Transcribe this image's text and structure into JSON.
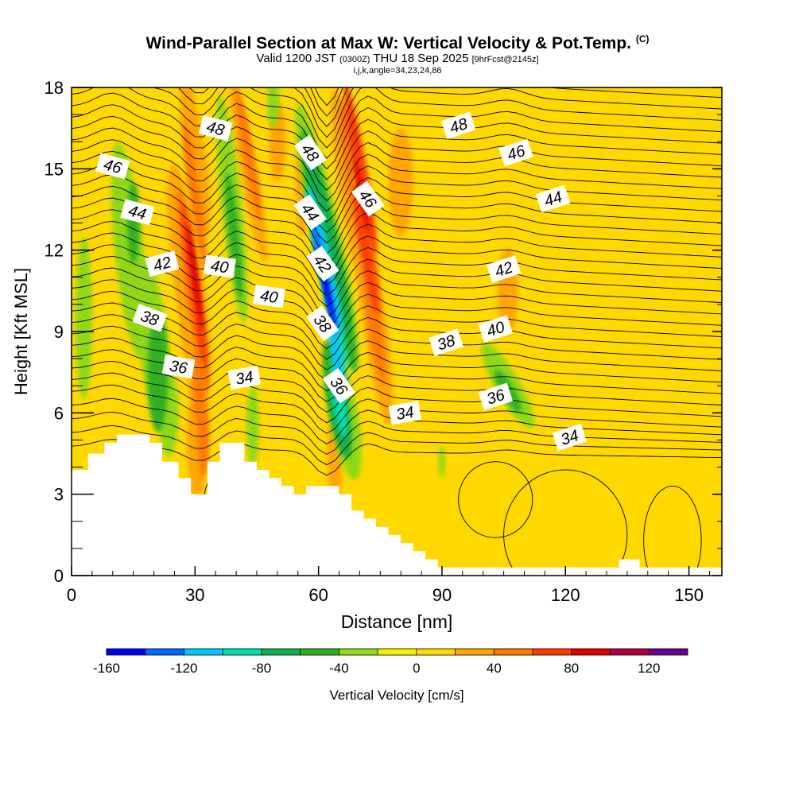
{
  "title": {
    "main": "Wind-Parallel Section at Max W: Vertical Velocity & Pot.Temp.",
    "copyright": "(C)",
    "valid_prefix": "Valid 1200 JST",
    "valid_utc": "(0300Z)",
    "valid_date": "THU 18 Sep 2025",
    "forecast_tag": "[9hrFcst@2145z]",
    "params": "i,j,k,angle=34,23,24,86"
  },
  "chart_data": {
    "type": "contour",
    "title": "Wind-Parallel Section at Max W: Vertical Velocity & Pot.Temp.",
    "xlabel": "Distance [nm]",
    "ylabel": "Height [Kft MSL]",
    "xlim": [
      0,
      158
    ],
    "ylim": [
      0,
      18
    ],
    "x_ticks": [
      0,
      30,
      60,
      90,
      120,
      150
    ],
    "y_ticks": [
      0,
      3,
      6,
      9,
      12,
      15,
      18
    ],
    "colorbar": {
      "label": "Vertical Velocity [cm/s]",
      "ticks": [
        -160,
        -120,
        -80,
        -40,
        0,
        40,
        80,
        120
      ],
      "levels": [
        -160,
        -140,
        -120,
        -100,
        -80,
        -60,
        -40,
        -20,
        0,
        20,
        40,
        60,
        80,
        100,
        120,
        140
      ],
      "colors": [
        "#0000ee",
        "#0066ff",
        "#00c8ff",
        "#00e0b0",
        "#10b050",
        "#30b020",
        "#90d818",
        "#f2f200",
        "#ffd800",
        "#ffa600",
        "#ff7a00",
        "#ff3c00",
        "#e00000",
        "#b00040",
        "#6a0090"
      ]
    },
    "velocity_field": [
      {
        "x": 12,
        "y": 11,
        "w": -25
      },
      {
        "x": 20,
        "y": 6,
        "w": -40
      },
      {
        "x": 24,
        "y": 8,
        "w": -50
      },
      {
        "x": 30,
        "y": 11,
        "w": 65
      },
      {
        "x": 27,
        "y": 13,
        "w": 45
      },
      {
        "x": 38,
        "y": 12,
        "w": -45
      },
      {
        "x": 43,
        "y": 17,
        "w": 40
      },
      {
        "x": 50,
        "y": 15,
        "w": 30
      },
      {
        "x": 61,
        "y": 10,
        "w": -140
      },
      {
        "x": 64,
        "y": 6,
        "w": -100
      },
      {
        "x": 70,
        "y": 12,
        "w": 70
      },
      {
        "x": 78,
        "y": 7,
        "w": 30
      },
      {
        "x": 105,
        "y": 7,
        "w": -30
      },
      {
        "x": 85,
        "y": 3,
        "w": -25
      },
      {
        "x": 108,
        "y": 12,
        "w": 20
      },
      {
        "x": 150,
        "y": 4,
        "w": 20
      }
    ],
    "theta_contours": {
      "interval_k": 1,
      "labels": [
        {
          "value": "48",
          "x": 35,
          "y": 16.5
        },
        {
          "value": "48",
          "x": 58,
          "y": 15.6
        },
        {
          "value": "48",
          "x": 94,
          "y": 16.6
        },
        {
          "value": "46",
          "x": 10,
          "y": 15.1
        },
        {
          "value": "46",
          "x": 72,
          "y": 13.9
        },
        {
          "value": "46",
          "x": 108,
          "y": 15.6
        },
        {
          "value": "44",
          "x": 16,
          "y": 13.4
        },
        {
          "value": "44",
          "x": 58,
          "y": 13.4
        },
        {
          "value": "44",
          "x": 117,
          "y": 13.9
        },
        {
          "value": "42",
          "x": 22,
          "y": 11.5
        },
        {
          "value": "42",
          "x": 61,
          "y": 11.5
        },
        {
          "value": "42",
          "x": 105,
          "y": 11.3
        },
        {
          "value": "40",
          "x": 36,
          "y": 11.4
        },
        {
          "value": "40",
          "x": 48,
          "y": 10.3
        },
        {
          "value": "40",
          "x": 103,
          "y": 9.1
        },
        {
          "value": "38",
          "x": 19,
          "y": 9.5
        },
        {
          "value": "38",
          "x": 61,
          "y": 9.3
        },
        {
          "value": "38",
          "x": 91,
          "y": 8.6
        },
        {
          "value": "36",
          "x": 26,
          "y": 7.7
        },
        {
          "value": "36",
          "x": 65,
          "y": 7.0
        },
        {
          "value": "36",
          "x": 103,
          "y": 6.6
        },
        {
          "value": "34",
          "x": 42,
          "y": 7.3
        },
        {
          "value": "34",
          "x": 81,
          "y": 6.0
        },
        {
          "value": "34",
          "x": 121,
          "y": 5.1
        }
      ]
    }
  }
}
